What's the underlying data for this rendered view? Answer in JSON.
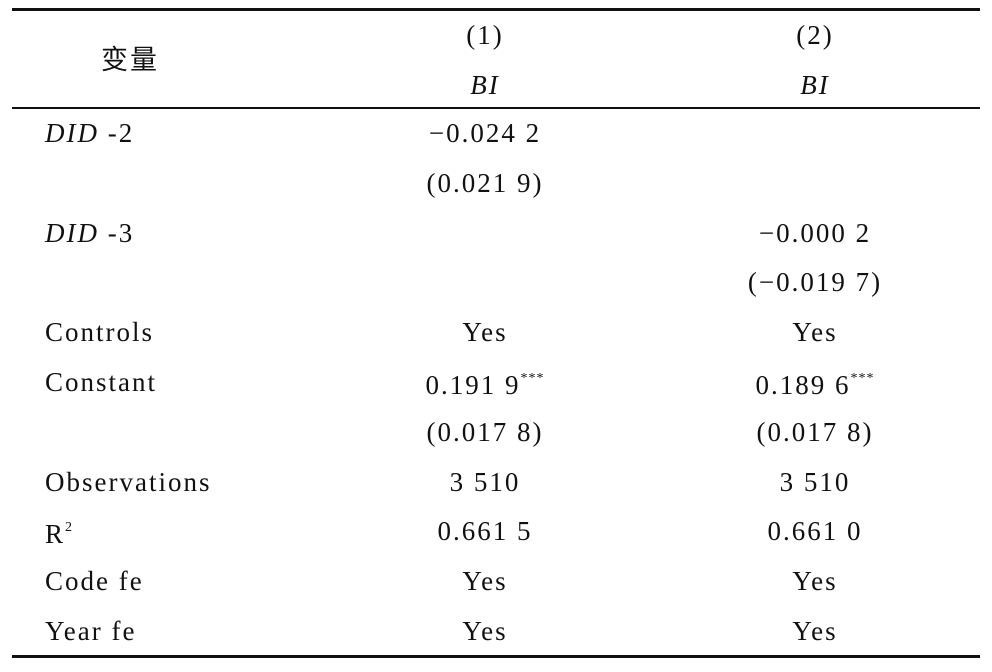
{
  "header": {
    "label": "变量",
    "columns": [
      {
        "number": "(1)",
        "name": "BI"
      },
      {
        "number": "(2)",
        "name": "BI"
      }
    ]
  },
  "table": {
    "rows": [
      [
        {
          "italic": "DID",
          "text": " -2"
        },
        {
          "text": "−0.024 2"
        },
        null
      ],
      [
        null,
        {
          "text": "(0.021 9)"
        },
        null
      ],
      [
        {
          "italic": "DID",
          "text": " -3"
        },
        null,
        {
          "text": "−0.000 2"
        }
      ],
      [
        null,
        null,
        {
          "text": "(−0.019 7)"
        }
      ],
      [
        {
          "text": "Controls"
        },
        {
          "text": "Yes"
        },
        {
          "text": "Yes"
        }
      ],
      [
        {
          "text": "Constant"
        },
        {
          "text": "0.191 9",
          "sup": "***"
        },
        {
          "text": "0.189 6",
          "sup": "***"
        }
      ],
      [
        null,
        {
          "text": "(0.017 8)"
        },
        {
          "text": "(0.017 8)"
        }
      ],
      [
        {
          "text": "Observations"
        },
        {
          "text": "3 510"
        },
        {
          "text": "3 510"
        }
      ],
      [
        {
          "text": "R",
          "sup": "2"
        },
        {
          "text": "0.661 5"
        },
        {
          "text": "0.661 0"
        }
      ],
      [
        {
          "text": "Code fe"
        },
        {
          "text": "Yes"
        },
        {
          "text": "Yes"
        }
      ],
      [
        {
          "text": "Year fe"
        },
        {
          "text": "Yes"
        },
        {
          "text": "Yes"
        }
      ]
    ]
  }
}
